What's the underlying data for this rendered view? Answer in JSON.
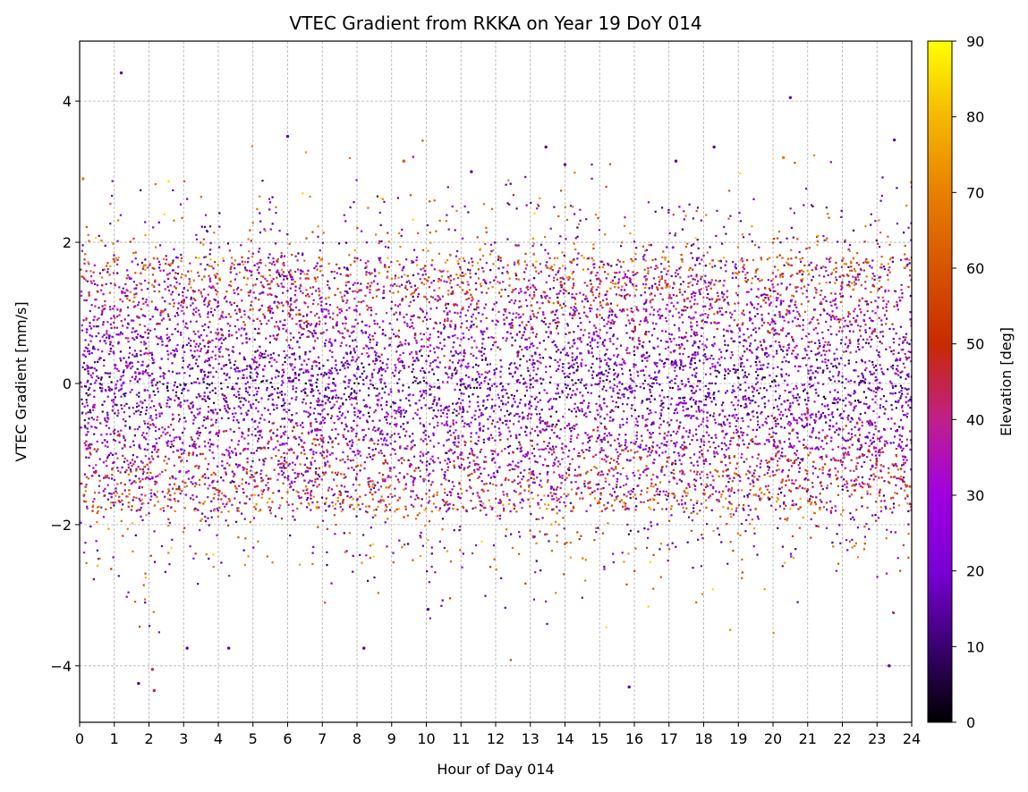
{
  "chart_data": {
    "type": "scatter",
    "title": "VTEC Gradient from RKKA on Year 19 DoY 014",
    "xlabel": "Hour of Day 014",
    "ylabel": "VTEC Gradient [mm/s]",
    "xlim": [
      0,
      24
    ],
    "ylim": [
      -4.8,
      4.85
    ],
    "xticks": [
      0,
      1,
      2,
      3,
      4,
      5,
      6,
      7,
      8,
      9,
      10,
      11,
      12,
      13,
      14,
      15,
      16,
      17,
      18,
      19,
      20,
      21,
      22,
      23,
      24
    ],
    "yticks": [
      -4,
      -2,
      0,
      2,
      4
    ],
    "ytick_labels": [
      "−4",
      "−2",
      "0",
      "2",
      "4"
    ],
    "grid": true,
    "colorbar": {
      "label": "Elevation [deg]",
      "range": [
        0,
        90
      ],
      "ticks": [
        0,
        10,
        20,
        30,
        40,
        50,
        60,
        70,
        80,
        90
      ],
      "colormap": "gnuplot",
      "stops": [
        "#000000",
        "#3a0070",
        "#7a00d6",
        "#a000e0",
        "#c0208a",
        "#c82a00",
        "#d65500",
        "#e88000",
        "#f5b800",
        "#ffff00"
      ]
    },
    "series": [
      {
        "points_description_values": "dense scatter of VTEC gradient values vs hour, mostly within ±2 mm/s",
        "band_center": 0.0,
        "band_halfwidth": 1.8,
        "outliers": [
          {
            "x": 1.2,
            "y": 4.4,
            "elev": 15
          },
          {
            "x": 6.0,
            "y": 3.5,
            "elev": 15
          },
          {
            "x": 9.35,
            "y": 3.15,
            "elev": 60
          },
          {
            "x": 13.45,
            "y": 3.35,
            "elev": 15
          },
          {
            "x": 18.3,
            "y": 3.35,
            "elev": 15
          },
          {
            "x": 20.5,
            "y": 4.05,
            "elev": 15
          },
          {
            "x": 23.5,
            "y": 3.45,
            "elev": 15
          },
          {
            "x": 1.7,
            "y": -4.25,
            "elev": 15
          },
          {
            "x": 2.15,
            "y": -4.35,
            "elev": 45
          },
          {
            "x": 2.1,
            "y": -4.05,
            "elev": 45
          },
          {
            "x": 8.2,
            "y": -3.75,
            "elev": 15
          },
          {
            "x": 15.85,
            "y": -4.3,
            "elev": 15
          },
          {
            "x": 23.35,
            "y": -4.0,
            "elev": 15
          },
          {
            "x": 3.1,
            "y": -3.75,
            "elev": 15
          },
          {
            "x": 4.3,
            "y": -3.75,
            "elev": 15
          },
          {
            "x": 20.3,
            "y": 3.2,
            "elev": 70
          },
          {
            "x": 10.05,
            "y": -3.2,
            "elev": 15
          },
          {
            "x": 0.1,
            "y": 2.9,
            "elev": 70
          },
          {
            "x": 24.0,
            "y": 2.85,
            "elev": 60
          },
          {
            "x": 14.0,
            "y": 3.1,
            "elev": 15
          },
          {
            "x": 11.3,
            "y": 3.0,
            "elev": 15
          },
          {
            "x": 17.2,
            "y": 3.15,
            "elev": 15
          }
        ]
      }
    ]
  }
}
